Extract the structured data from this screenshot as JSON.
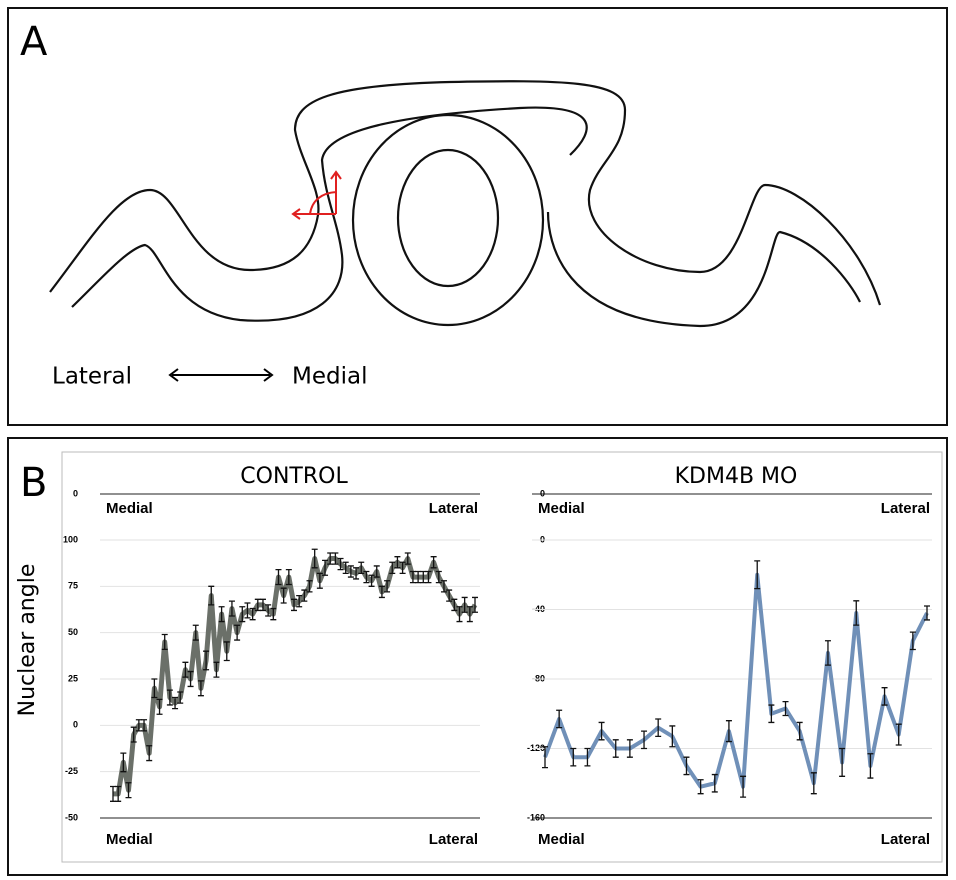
{
  "panel_a": {
    "label": "A",
    "left": "Lateral",
    "right": "Medial"
  },
  "panel_b": {
    "label": "B",
    "y_label": "Nuclear angle"
  },
  "chart_data": [
    {
      "type": "line",
      "title": "CONTROL",
      "top_axis_label": "0",
      "top_left": "Medial",
      "top_right": "Lateral",
      "bottom_left": "Medial",
      "bottom_right": "Lateral",
      "categories": [
        null,
        null,
        null,
        null,
        null,
        null,
        null,
        null,
        null,
        null,
        null,
        null,
        null,
        null,
        null,
        null,
        null,
        null,
        null,
        null,
        null,
        null,
        null,
        null,
        null,
        null,
        null,
        null,
        null,
        null,
        null,
        null,
        null,
        null,
        null,
        null,
        null,
        null,
        null,
        null,
        null,
        null,
        null,
        null,
        null,
        null,
        null,
        null,
        null,
        null,
        null,
        null,
        null,
        null,
        null,
        null,
        null,
        null,
        null,
        null,
        null,
        null,
        null,
        null,
        null,
        null,
        null,
        null,
        null,
        null,
        null
      ],
      "series": [
        {
          "color": "#6b7069",
          "values": [
            -37,
            -37,
            -20,
            -35,
            -5,
            0,
            0,
            -15,
            20,
            10,
            45,
            15,
            12,
            15,
            30,
            25,
            50,
            20,
            35,
            70,
            30,
            60,
            40,
            63,
            50,
            60,
            62,
            60,
            65,
            65,
            62,
            60,
            80,
            70,
            80,
            65,
            67,
            70,
            75,
            90,
            78,
            85,
            90,
            90,
            87,
            85,
            83,
            82,
            85,
            80,
            78,
            83,
            72,
            75,
            85,
            88,
            85,
            90,
            80,
            80,
            80,
            80,
            88,
            80,
            75,
            70,
            65,
            60,
            65,
            60,
            65
          ],
          "errors": [
            4,
            4,
            5,
            4,
            4,
            3,
            3,
            4,
            5,
            4,
            4,
            4,
            3,
            3,
            4,
            4,
            4,
            4,
            5,
            5,
            4,
            4,
            5,
            4,
            4,
            4,
            4,
            3,
            3,
            3,
            3,
            3,
            4,
            4,
            4,
            3,
            3,
            3,
            3,
            5,
            4,
            4,
            3,
            3,
            3,
            3,
            3,
            3,
            3,
            3,
            3,
            3,
            3,
            3,
            3,
            3,
            3,
            3,
            3,
            3,
            3,
            3,
            3,
            3,
            3,
            3,
            3,
            4,
            4,
            4,
            4
          ]
        }
      ],
      "ylim": [
        -50,
        100
      ],
      "yticks": [
        -50,
        -25,
        0,
        25,
        50,
        75,
        100
      ],
      "grid": true
    },
    {
      "type": "line",
      "title": "KDM4B MO",
      "top_axis_label": "0",
      "top_left": "Medial",
      "top_right": "Lateral",
      "bottom_left": "Medial",
      "bottom_right": "Lateral",
      "categories": [
        null,
        null,
        null,
        null,
        null,
        null,
        null,
        null,
        null,
        null,
        null,
        null,
        null,
        null,
        null,
        null,
        null,
        null,
        null,
        null,
        null,
        null,
        null,
        null,
        null,
        null,
        null,
        null
      ],
      "series": [
        {
          "color": "#7090b8",
          "values": [
            -125,
            -103,
            -125,
            -125,
            -110,
            -120,
            -120,
            -115,
            -108,
            -113,
            -130,
            -142,
            -140,
            -110,
            -142,
            -20,
            -100,
            -97,
            -110,
            -140,
            -65,
            -128,
            -42,
            -130,
            -90,
            -112,
            -58,
            -42
          ],
          "errors": [
            6,
            5,
            5,
            5,
            5,
            5,
            5,
            5,
            5,
            6,
            5,
            4,
            5,
            6,
            6,
            8,
            5,
            4,
            5,
            6,
            7,
            8,
            7,
            7,
            5,
            6,
            5,
            4
          ]
        }
      ],
      "ylim": [
        -160,
        0
      ],
      "yticks": [
        -160,
        -120,
        -80,
        -40,
        0
      ],
      "grid": true
    }
  ]
}
